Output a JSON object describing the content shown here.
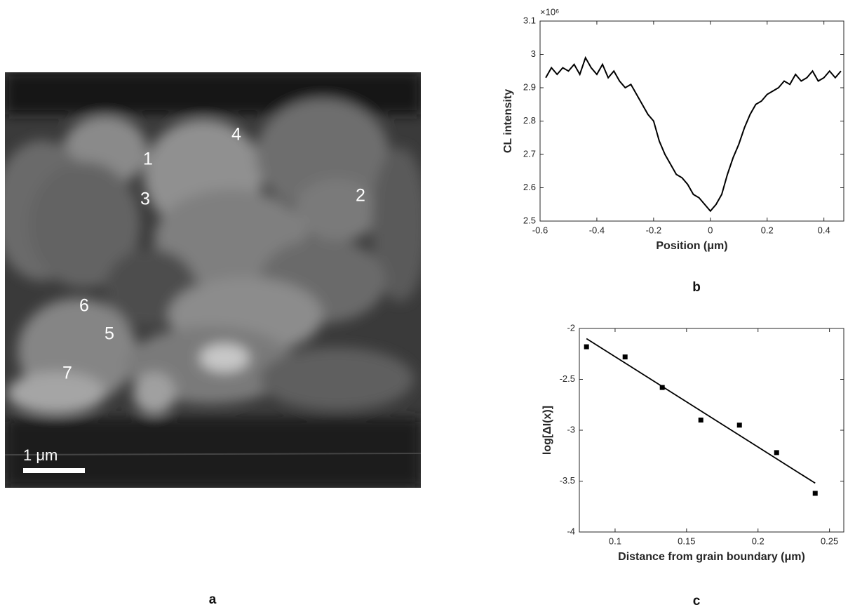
{
  "image": {
    "grain_labels": [
      "1",
      "2",
      "3",
      "4",
      "5",
      "6",
      "7"
    ],
    "scale_bar": "1 μm"
  },
  "panel_labels": [
    "a",
    "b",
    "c"
  ],
  "chart_data": [
    {
      "type": "line",
      "xlabel": "Position (μm)",
      "ylabel": "CL intensity",
      "exponent_label": "×10⁶",
      "color": "#000000",
      "x": [
        -0.58,
        -0.56,
        -0.54,
        -0.52,
        -0.5,
        -0.48,
        -0.46,
        -0.44,
        -0.42,
        -0.4,
        -0.38,
        -0.36,
        -0.34,
        -0.32,
        -0.3,
        -0.28,
        -0.26,
        -0.24,
        -0.22,
        -0.2,
        -0.18,
        -0.16,
        -0.14,
        -0.12,
        -0.1,
        -0.08,
        -0.06,
        -0.04,
        -0.02,
        0,
        0.02,
        0.04,
        0.06,
        0.08,
        0.1,
        0.12,
        0.14,
        0.16,
        0.18,
        0.2,
        0.22,
        0.24,
        0.26,
        0.28,
        0.3,
        0.32,
        0.34,
        0.36,
        0.38,
        0.4,
        0.42,
        0.44,
        0.46
      ],
      "values": [
        2.93,
        2.96,
        2.94,
        2.96,
        2.95,
        2.97,
        2.94,
        2.99,
        2.96,
        2.94,
        2.97,
        2.93,
        2.95,
        2.92,
        2.9,
        2.91,
        2.88,
        2.85,
        2.82,
        2.8,
        2.74,
        2.7,
        2.67,
        2.64,
        2.63,
        2.61,
        2.58,
        2.57,
        2.55,
        2.53,
        2.55,
        2.58,
        2.64,
        2.69,
        2.73,
        2.78,
        2.82,
        2.85,
        2.86,
        2.88,
        2.89,
        2.9,
        2.92,
        2.91,
        2.94,
        2.92,
        2.93,
        2.95,
        2.92,
        2.93,
        2.95,
        2.93,
        2.95
      ],
      "xlim": [
        -0.6,
        0.47
      ],
      "ylim": [
        2.5,
        3.1
      ],
      "xticks": [
        -0.6,
        -0.4,
        -0.2,
        0,
        0.2,
        0.4
      ],
      "yticks": [
        2.5,
        2.6,
        2.7,
        2.8,
        2.9,
        3,
        3.1
      ]
    },
    {
      "type": "scatter",
      "xlabel": "Distance from grain boundary (μm)",
      "ylabel": "log[ΔI(x)]",
      "color": "#000000",
      "x": [
        0.08,
        0.107,
        0.133,
        0.16,
        0.187,
        0.213,
        0.24
      ],
      "values": [
        -2.18,
        -2.28,
        -2.58,
        -2.9,
        -2.95,
        -3.22,
        -3.62
      ],
      "fit_line": {
        "x": [
          0.08,
          0.24
        ],
        "values": [
          -2.1,
          -3.52
        ]
      },
      "xlim": [
        0.075,
        0.26
      ],
      "ylim": [
        -4,
        -2
      ],
      "xticks": [
        0.1,
        0.15,
        0.2,
        0.25
      ],
      "yticks": [
        -4,
        -3.5,
        -3,
        -2.5,
        -2
      ]
    }
  ]
}
